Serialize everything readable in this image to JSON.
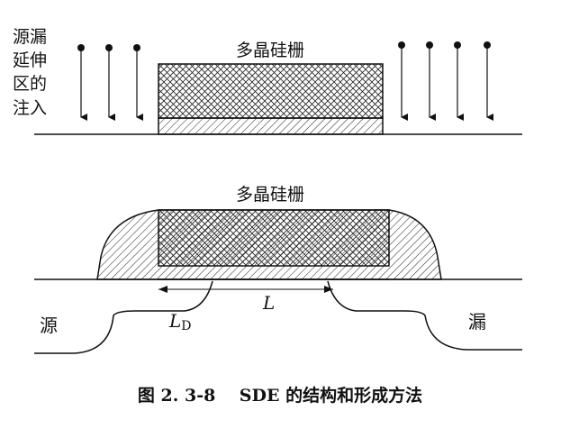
{
  "top_section": {
    "left_label_lines": [
      "源漏",
      "延伸",
      "区的",
      "注入"
    ],
    "gate_label": "多晶硅栅"
  },
  "bottom_section": {
    "gate_label": "多晶硅栅",
    "source_label": "源",
    "drain_label": "漏",
    "channel_length_label": "L",
    "overlap_label_main": "L",
    "overlap_label_sub": "D"
  },
  "caption": "图 2. 3-8    SDE 的结构和形成方法"
}
